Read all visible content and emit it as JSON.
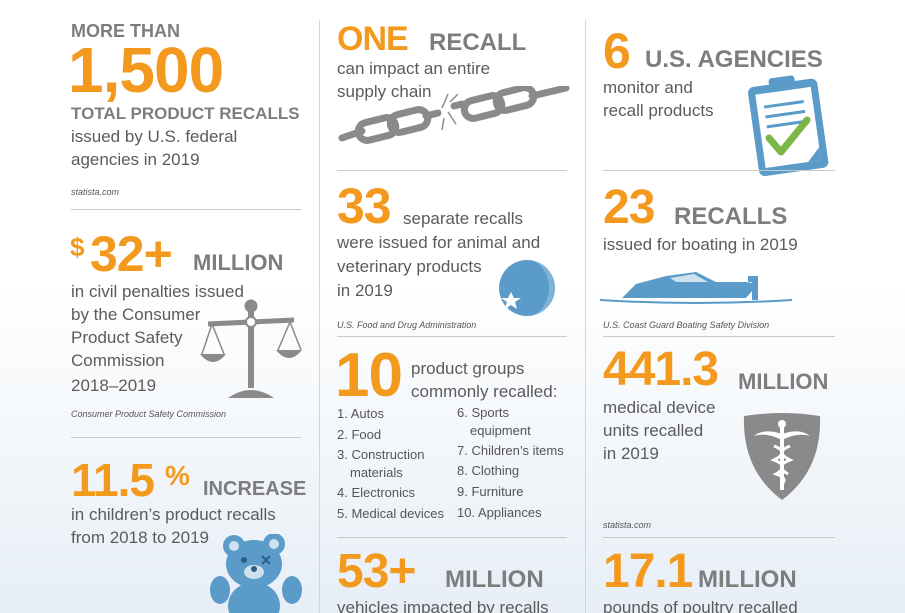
{
  "col1": {
    "stat1": {
      "prefix": "MORE THAN",
      "number": "1,500",
      "label": "TOTAL PRODUCT RECALLS",
      "line1": "issued by U.S. federal",
      "line2": "agencies in 2019",
      "source": "statista.com"
    },
    "stat2": {
      "dollar": "$",
      "number": "32+",
      "unit": "MILLION",
      "line1": "in civil penalties issued",
      "line2": "by the Consumer",
      "line3": "Product Safety",
      "line4": "Commission",
      "line5": "2018–2019",
      "source": "Consumer Product Safety Commission"
    },
    "stat3": {
      "number": "11.5",
      "percent": "%",
      "unit": "INCREASE",
      "line1": "in children’s product recalls",
      "line2": "from 2018 to 2019"
    }
  },
  "col2": {
    "stat1": {
      "number": "ONE",
      "unit": "RECALL",
      "line1": "can impact an entire",
      "line2": "supply chain"
    },
    "stat2": {
      "number": "33",
      "line0": "separate recalls",
      "line1": "were issued for animal and",
      "line2": "veterinary products",
      "line3": "in 2019",
      "source": "U.S. Food and Drug Administration"
    },
    "stat3": {
      "number": "10",
      "line1": "product groups",
      "line2": "commonly recalled:",
      "list_left": [
        "1. Autos",
        "2. Food",
        "3. Construction",
        "materials",
        "4. Electronics",
        "5. Medical devices"
      ],
      "list_right": [
        "6. Sports",
        "equipment",
        "7. Children’s items",
        "8. Clothing",
        "9. Furniture",
        "10. Appliances"
      ]
    },
    "stat4": {
      "number": "53+",
      "unit": "MILLION",
      "line1": "vehicles impacted by recalls"
    }
  },
  "col3": {
    "stat1": {
      "number": "6",
      "unit": "U.S. AGENCIES",
      "line1": "monitor and",
      "line2": "recall products"
    },
    "stat2": {
      "number": "23",
      "unit": "RECALLS",
      "line1": "issued for boating in 2019",
      "source": "U.S. Coast Guard Boating Safety Division"
    },
    "stat3": {
      "number": "441.3",
      "unit": "MILLION",
      "line1": "medical device",
      "line2": "units recalled",
      "line3": "in 2019",
      "source": "statista.com"
    },
    "stat4": {
      "number": "17.1",
      "unit": "MILLION",
      "line1": "pounds of poultry recalled"
    }
  },
  "colors": {
    "orange": "#f39a1e",
    "gray": "#7d7d7d",
    "icon_blue": "#5b9bc9",
    "icon_gray": "#8a8a8a"
  }
}
